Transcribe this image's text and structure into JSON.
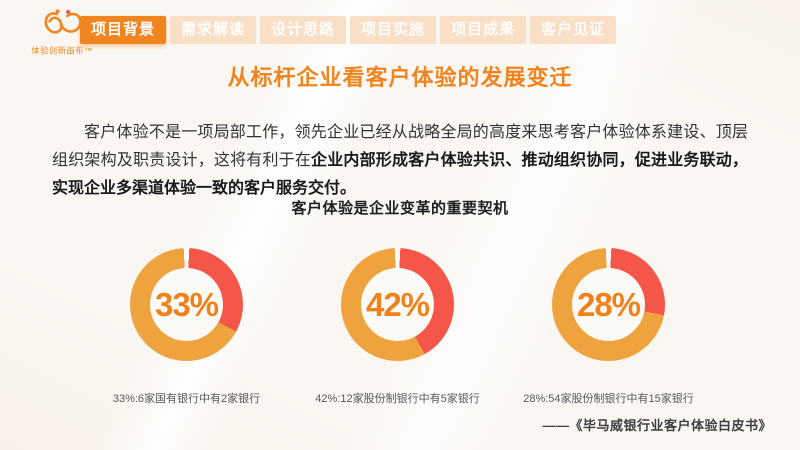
{
  "logo": {
    "brand": "体验创新画布™"
  },
  "nav": {
    "tabs": [
      {
        "label": "项目背景",
        "active": true
      },
      {
        "label": "需求解读",
        "active": false
      },
      {
        "label": "设计思路",
        "active": false
      },
      {
        "label": "项目实施",
        "active": false
      },
      {
        "label": "项目成果",
        "active": false
      },
      {
        "label": "客户见证",
        "active": false
      }
    ]
  },
  "page": {
    "title": "从标杆企业看客户体验的发展变迁",
    "paragraph_normal": "客户体验不是一项局部工作，领先企业已经从战略全局的高度来思考客户体验体系建设、顶层组织架构及职责设计，这将有利于在",
    "paragraph_bold": "企业内部形成客户体验共识、推动组织协同，促进业务联动，实现企业多渠道体验一致的客户服务交付。",
    "citation": "——《毕马威银行业客户体验白皮书》"
  },
  "chart_data": {
    "type": "pie",
    "subtype": "donut",
    "title": "客户体验是企业变革的重要契机",
    "legend_position": "none",
    "orientation": "highlight segment starts at 12 o'clock, clockwise",
    "charts": [
      {
        "value": 33,
        "label": "33%",
        "slices": [
          33,
          67
        ],
        "caption": "33%:6家国有银行中有2家银行"
      },
      {
        "value": 42,
        "label": "42%",
        "slices": [
          42,
          58
        ],
        "caption": "42%:12家股份制银行中有5家银行"
      },
      {
        "value": 28,
        "label": "28%",
        "slices": [
          28,
          72
        ],
        "caption": "28%:54家股份制银行中有15家银行"
      }
    ],
    "colors": {
      "highlight": "#f4574a",
      "remainder": "#efa33f",
      "percent_text": "#f0821c",
      "gap": "#fcfaf7"
    }
  },
  "colors": {
    "accent": "#f0851f",
    "tab_inactive_bg": "#f8dfc6",
    "body_text": "#333333",
    "caption_text": "#595959",
    "background": "#faf7f3"
  }
}
